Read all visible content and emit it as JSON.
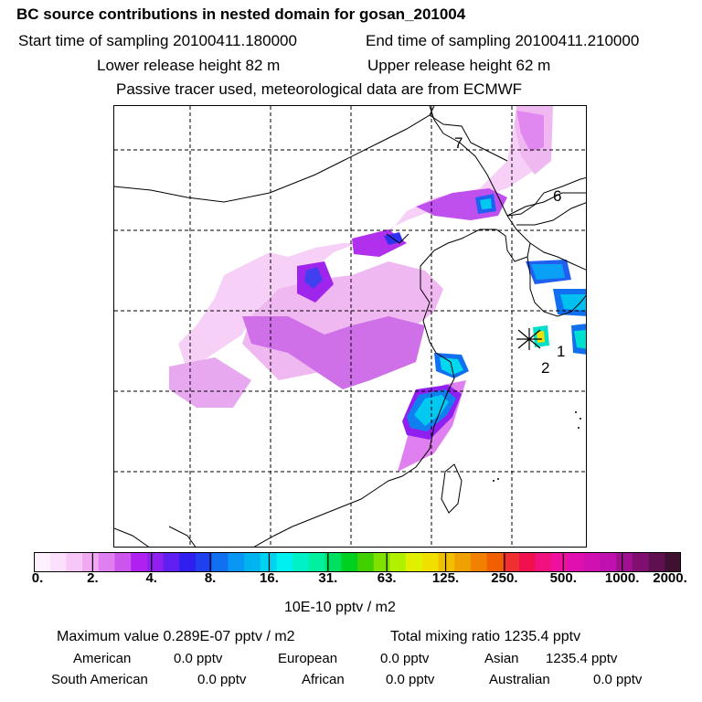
{
  "header": {
    "title": "BC  source contributions in nested domain for gosan_201004",
    "start_time": "Start time of sampling 20100411.180000",
    "end_time": "End time of sampling 20100411.210000",
    "lower_height": "Lower release height   82 m",
    "upper_height": "Upper release height   62 m",
    "tracer_note": "Passive tracer used, meteorological data are from ECMWF"
  },
  "map": {
    "trajectory_labels": [
      "7",
      "6",
      "1",
      "2"
    ]
  },
  "colorbar": {
    "tick_labels": [
      "0.",
      "2.",
      "4.",
      "8.",
      "16.",
      "31.",
      "63.",
      "125.",
      "250.",
      "500.",
      "1000.",
      "2000."
    ],
    "units": "10E-10 pptv / m2",
    "colors": [
      "#fff0ff",
      "#fbe0fb",
      "#f7c8f7",
      "#f0a8f0",
      "#e080f0",
      "#cc55ee",
      "#b020f0",
      "#9020f0",
      "#6020f0",
      "#3020f0",
      "#2040f0",
      "#1070f0",
      "#0a96f5",
      "#00b4f0",
      "#00d2f0",
      "#00f0f0",
      "#00f0c8",
      "#00f0a0",
      "#00e060",
      "#00d020",
      "#40d000",
      "#80e000",
      "#b0f000",
      "#e0f000",
      "#f0e000",
      "#f0c000",
      "#f0a000",
      "#f08000",
      "#f06000",
      "#f03030",
      "#f01050",
      "#f01080",
      "#f010a0",
      "#e010b0",
      "#d010b0",
      "#c010b0",
      "#a01090",
      "#801070",
      "#601050",
      "#401030"
    ]
  },
  "stats": {
    "max_value": "Maximum value  0.289E-07 pptv / m2",
    "total_mixing": "Total mixing ratio     1235.4 pptv",
    "american_label": "American",
    "american_value": "0.0 pptv",
    "european_label": "European",
    "european_value": "0.0 pptv",
    "asian_label": "Asian",
    "asian_value": "1235.4 pptv",
    "south_american_label": "South American",
    "south_american_value": "0.0 pptv",
    "african_label": "African",
    "african_value": "0.0 pptv",
    "australian_label": "Australian",
    "australian_value": "0.0 pptv"
  }
}
